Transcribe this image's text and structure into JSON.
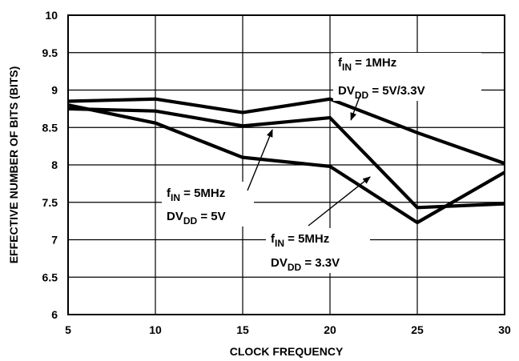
{
  "chart_data": {
    "type": "line",
    "xlabel": "CLOCK FREQUENCY",
    "ylabel": "EFFECTIVE NUMBER OF BITS (BITS)",
    "x": [
      5,
      10,
      15,
      20,
      25,
      30
    ],
    "xlim": [
      5,
      30
    ],
    "ylim": [
      6,
      10
    ],
    "xticks": [
      "5",
      "10",
      "15",
      "20",
      "25",
      "30"
    ],
    "yticks": [
      "6",
      "6.5",
      "7",
      "7.5",
      "8",
      "8.5",
      "9",
      "9.5",
      "10"
    ],
    "grid": true,
    "series": [
      {
        "values": [
          8.85,
          8.88,
          8.7,
          8.88,
          8.43,
          8.02
        ]
      },
      {
        "values": [
          8.75,
          8.72,
          8.52,
          8.63,
          7.43,
          7.48
        ]
      },
      {
        "values": [
          8.8,
          8.56,
          8.1,
          7.98,
          7.23,
          7.9
        ]
      }
    ],
    "annotations": [
      {
        "line1_main": "f",
        "line1_sub": "IN",
        "line1_rest": " = 1MHz",
        "line2_main": "DV",
        "line2_sub": "DD",
        "line2_rest": " = 5V/3.3V",
        "points_to": {
          "x": 21.2,
          "y": 8.6
        }
      },
      {
        "line1_main": "f",
        "line1_sub": "IN",
        "line1_rest": " = 5MHz",
        "line2_main": "DV",
        "line2_sub": "DD",
        "line2_rest": " = 5V",
        "points_to": {
          "x": 16.7,
          "y": 8.47
        }
      },
      {
        "line1_main": "f",
        "line1_sub": "IN",
        "line1_rest": " = 5MHz",
        "line2_main": "DV",
        "line2_sub": "DD",
        "line2_rest": " = 3.3V",
        "points_to": {
          "x": 22.3,
          "y": 7.84
        }
      }
    ]
  }
}
